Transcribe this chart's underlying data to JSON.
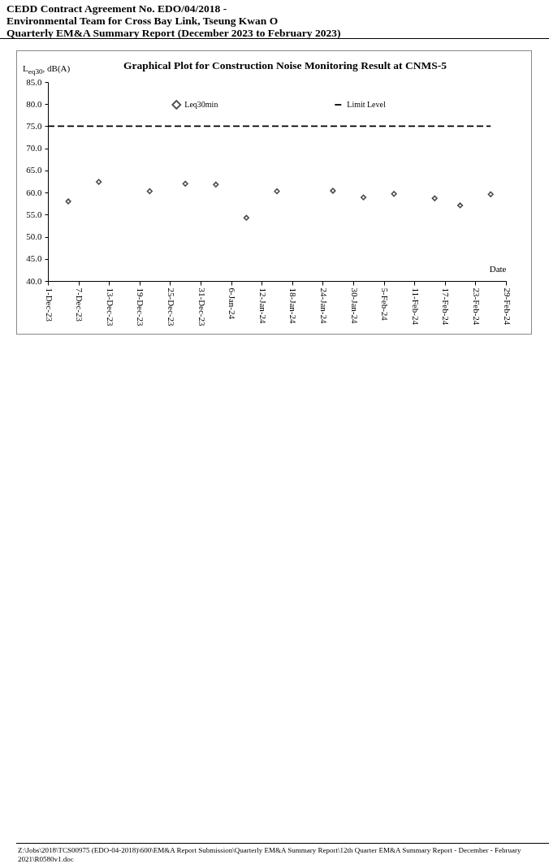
{
  "chart_data": {
    "type": "scatter",
    "title": "Graphical Plot for Construction Noise Monitoring Result at CNMS-5",
    "xlabel": "Date",
    "ylabel": "L$_{eq30}$, dB(A)",
    "annotations": [
      "CEDD Contract Agreement No. EDO/04/2018 -",
      "Environmental Team for Cross Bay Link, Tseung Kwan O",
      "Quarterly EM&A Summary Report (December 2023 to February 2023)",
      "Z:\\Jobs\\2018\\TCS00975 (EDO-04-2018)\\600\\EM&A Report Submission\\Quarterly EM&A Summary Report\\12th Quarter EM&A Summary Report - December - February 2021\\R0580v1.doc"
    ],
    "series": [
      {
        "name": "Leq30min",
        "type": "scatter",
        "marker": "diamond",
        "color": "#000000",
        "x": [
          "2023-12-05",
          "2023-12-11",
          "2023-12-21",
          "2023-12-28",
          "2024-01-03",
          "2024-01-09",
          "2024-01-15",
          "2024-01-26",
          "2024-02-01",
          "2024-02-07",
          "2024-02-15",
          "2024-02-20",
          "2024-02-26"
        ],
        "values": [
          58.0,
          62.4,
          60.3,
          62.0,
          61.8,
          54.3,
          60.3,
          60.4,
          58.9,
          59.7,
          58.7,
          57.1,
          59.6
        ]
      },
      {
        "name": "Limit Level",
        "type": "line",
        "color": "#000000",
        "line_style": "dashed",
        "marker": "none",
        "x": [
          "2023-12-01",
          "2024-02-26"
        ],
        "values": [
          75,
          75
        ]
      }
    ],
    "xlim": [
      "2023-12-01",
      "2024-02-29"
    ],
    "xticks": [
      {
        "value": "2023-12-01",
        "label": "1-Dec-23"
      },
      {
        "value": "2023-12-07",
        "label": "7-Dec-23"
      },
      {
        "value": "2023-12-13",
        "label": "13-Dec-23"
      },
      {
        "value": "2023-12-19",
        "label": "19-Dec-23"
      },
      {
        "value": "2023-12-25",
        "label": "25-Dec-23"
      },
      {
        "value": "2023-12-31",
        "label": "31-Dec-23"
      },
      {
        "value": "2024-01-06",
        "label": "6-Jan-24"
      },
      {
        "value": "2024-01-12",
        "label": "12-Jan-24"
      },
      {
        "value": "2024-01-18",
        "label": "18-Jan-24"
      },
      {
        "value": "2024-01-24",
        "label": "24-Jan-24"
      },
      {
        "value": "2024-01-30",
        "label": "30-Jan-24"
      },
      {
        "value": "2024-02-05",
        "label": "5-Feb-24"
      },
      {
        "value": "2024-02-11",
        "label": "11-Feb-24"
      },
      {
        "value": "2024-02-17",
        "label": "17-Feb-24"
      },
      {
        "value": "2024-02-23",
        "label": "23-Feb-24"
      },
      {
        "value": "2024-02-29",
        "label": "29-Feb-24"
      }
    ],
    "ylim": [
      40,
      85
    ],
    "yticks": [
      {
        "value": 40,
        "label": "40.0"
      },
      {
        "value": 45,
        "label": "45.0"
      },
      {
        "value": 50,
        "label": "50.0"
      },
      {
        "value": 55,
        "label": "55.0"
      },
      {
        "value": 60,
        "label": "60.0"
      },
      {
        "value": 65,
        "label": "65.0"
      },
      {
        "value": 70,
        "label": "70.0"
      },
      {
        "value": 75,
        "label": "75.0"
      },
      {
        "value": 80,
        "label": "80.0"
      },
      {
        "value": 85,
        "label": "85.0"
      }
    ],
    "grid": false,
    "legend": "top"
  }
}
